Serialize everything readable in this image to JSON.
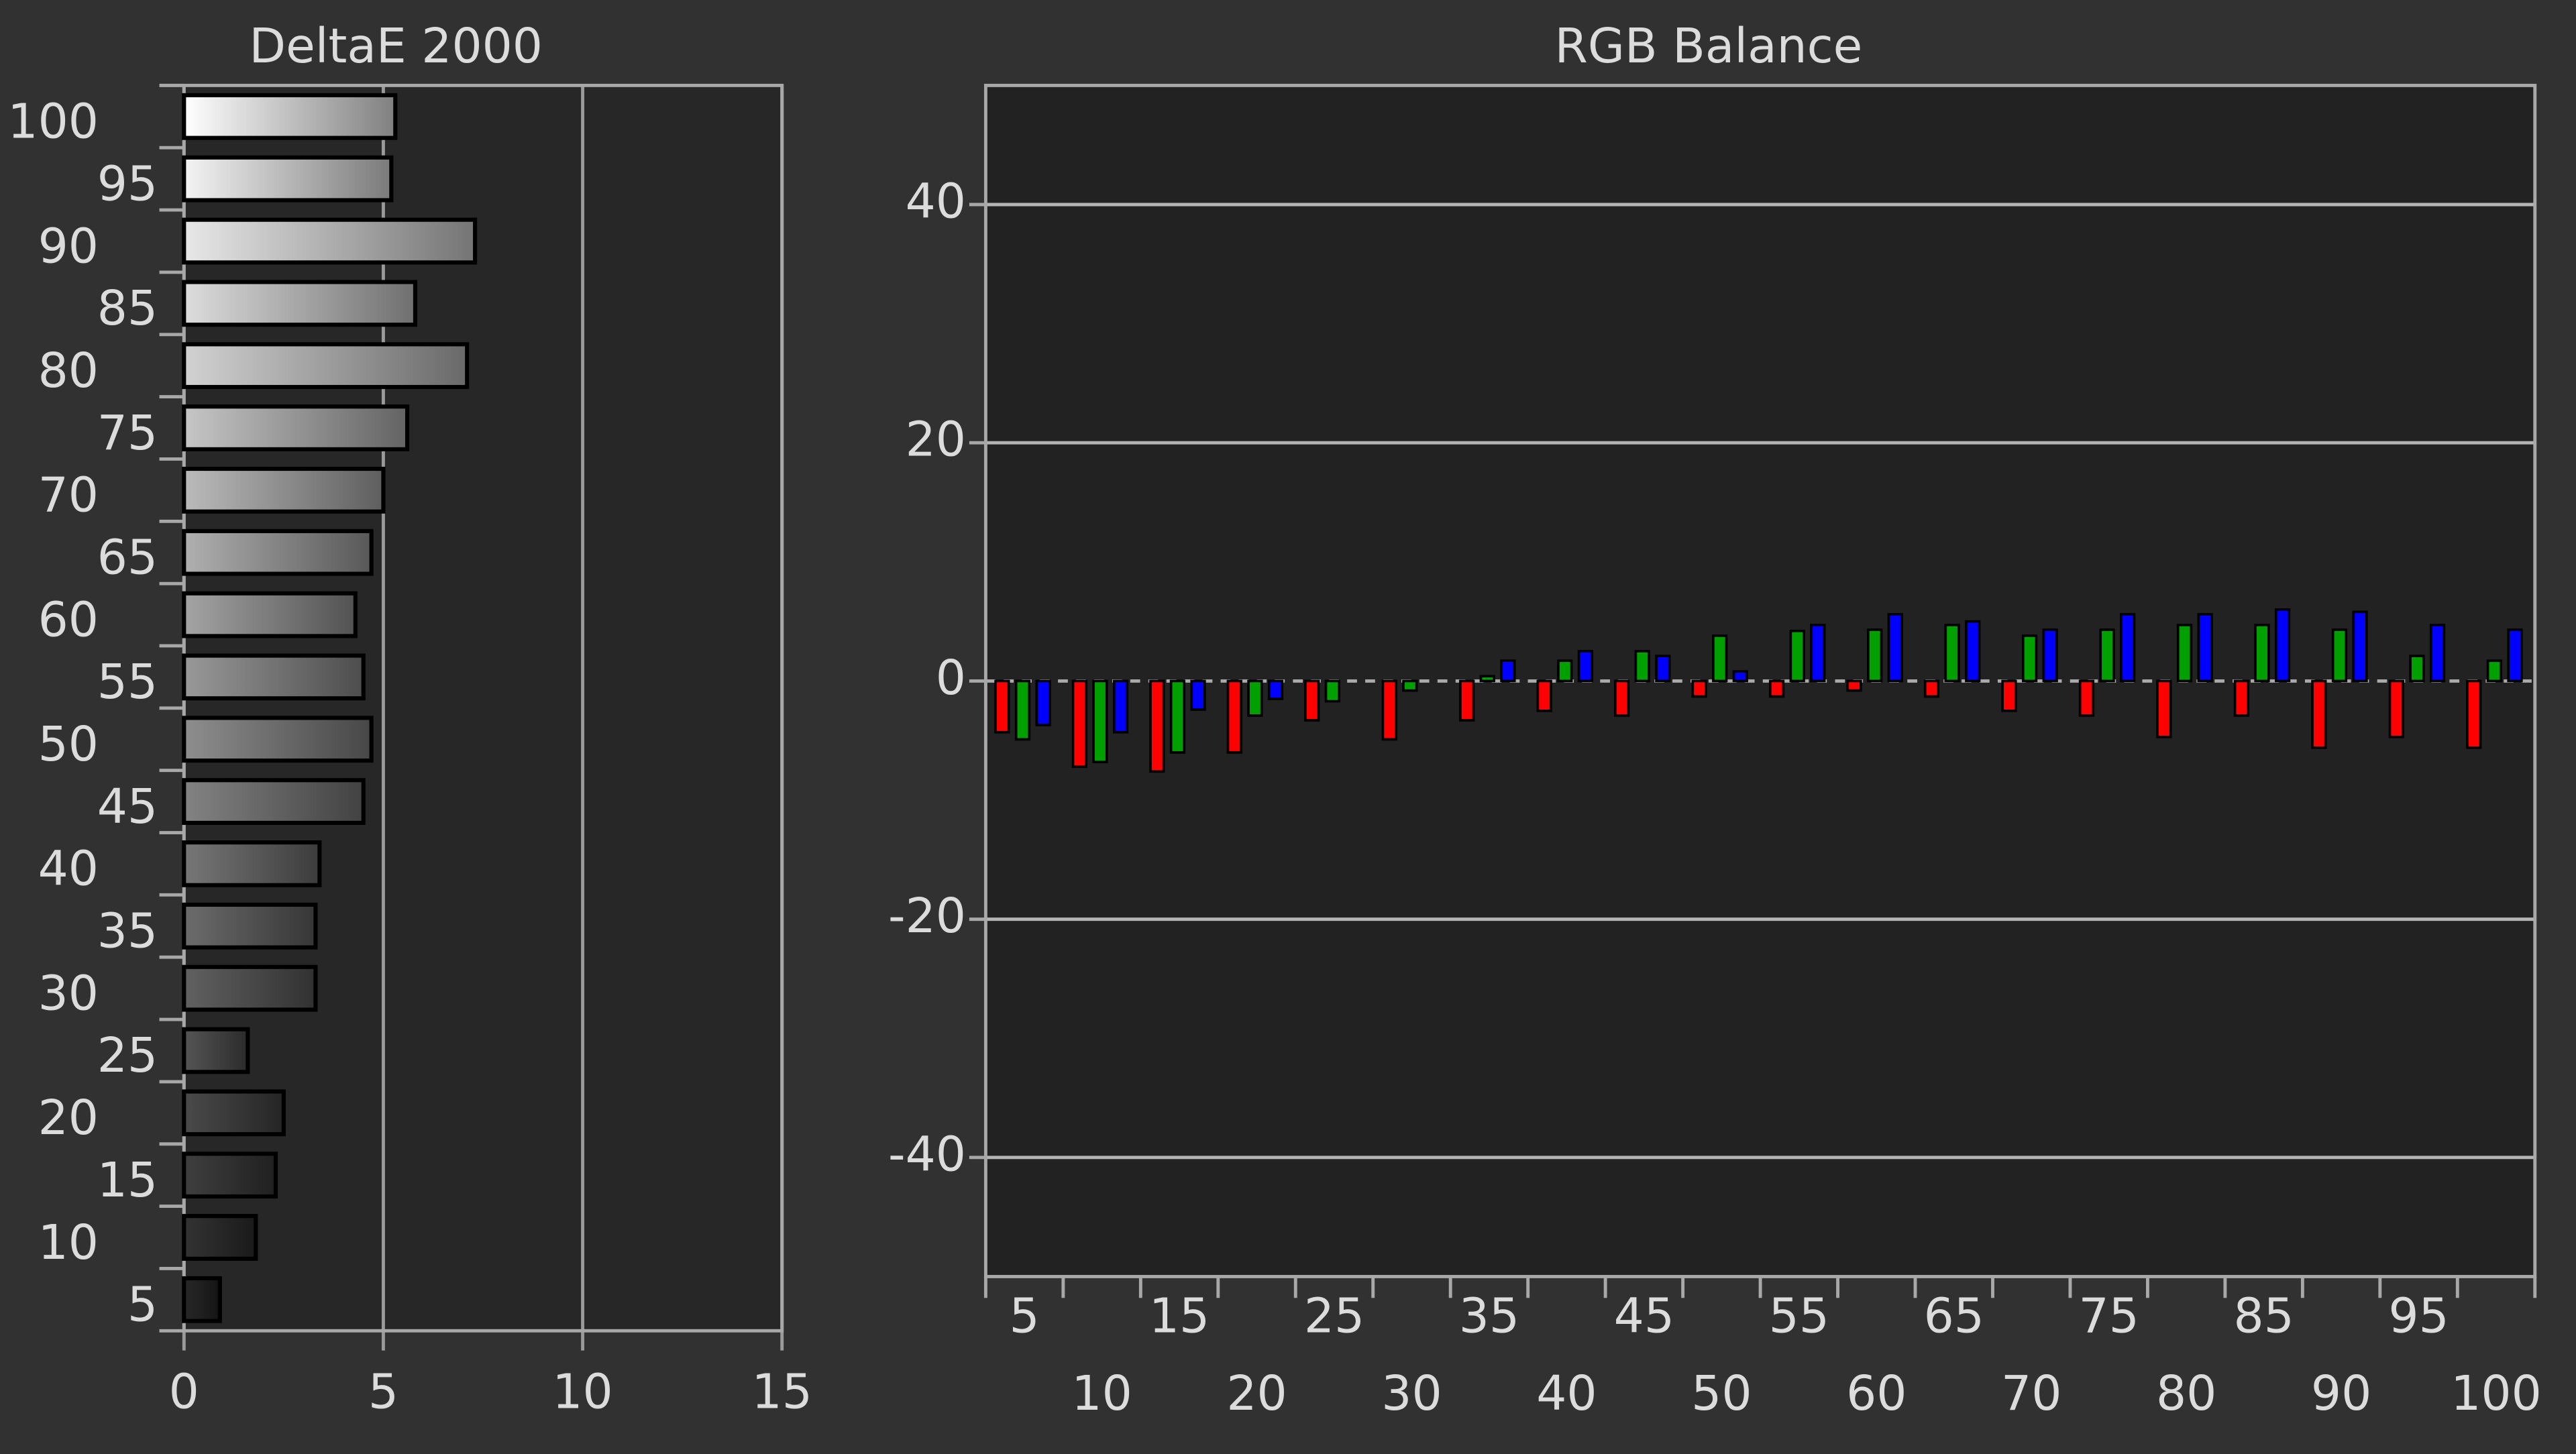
{
  "chart_data": [
    {
      "type": "hbar",
      "title": "DeltaE 2000",
      "categories": [
        "5",
        "10",
        "15",
        "20",
        "25",
        "30",
        "35",
        "40",
        "45",
        "50",
        "55",
        "60",
        "65",
        "70",
        "75",
        "80",
        "85",
        "90",
        "95",
        "100"
      ],
      "values": [
        0.9,
        1.8,
        2.3,
        2.5,
        1.6,
        3.3,
        3.3,
        3.4,
        4.5,
        4.7,
        4.5,
        4.3,
        4.7,
        5.0,
        5.6,
        7.1,
        5.8,
        7.3,
        5.2,
        5.3
      ],
      "xlim": [
        0,
        15
      ],
      "xticks": [
        0,
        5,
        10,
        15
      ],
      "grid": true,
      "color": "#ffffff"
    },
    {
      "type": "grouped-bar",
      "title": "RGB Balance",
      "categories": [
        "5",
        "10",
        "15",
        "20",
        "25",
        "30",
        "35",
        "40",
        "45",
        "50",
        "55",
        "60",
        "65",
        "70",
        "75",
        "80",
        "85",
        "90",
        "95",
        "100"
      ],
      "series": [
        {
          "color": "#ff0000",
          "values": [
            -4.3,
            -7.2,
            -7.6,
            -6.0,
            -3.3,
            -4.9,
            -3.3,
            -2.5,
            -2.9,
            -1.3,
            -1.3,
            -0.8,
            -1.3,
            -2.5,
            -2.9,
            -4.7,
            -2.9,
            -5.6,
            -4.7,
            -5.6
          ]
        },
        {
          "color": "#00a000",
          "values": [
            -4.9,
            -6.8,
            -6.0,
            -2.9,
            -1.7,
            -0.8,
            0.4,
            1.7,
            2.5,
            3.8,
            4.2,
            4.3,
            4.7,
            3.8,
            4.3,
            4.7,
            4.7,
            4.3,
            2.1,
            1.7
          ]
        },
        {
          "color": "#0000ff",
          "values": [
            -3.7,
            -4.3,
            -2.4,
            -1.5,
            0,
            0,
            1.7,
            2.5,
            2.1,
            0.8,
            4.7,
            5.6,
            5.0,
            4.3,
            5.6,
            5.6,
            6.0,
            5.8,
            4.7,
            4.3
          ]
        }
      ],
      "ylim": [
        -50,
        50
      ],
      "yticks": [
        -40,
        -20,
        0,
        20,
        40
      ],
      "grid": true
    }
  ]
}
